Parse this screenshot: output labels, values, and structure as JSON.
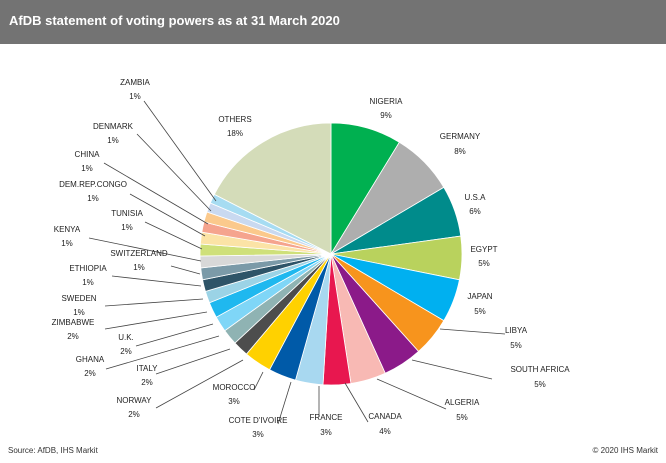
{
  "header": {
    "title": "AfDB statement of voting powers as at 31 March 2020"
  },
  "footer": {
    "source": "Source:  AfDB, IHS Markit",
    "copyright": "© 2020  IHS Markit"
  },
  "chart_data": {
    "type": "pie",
    "title": "AfDB statement of voting powers as at 31 March 2020",
    "slices": [
      {
        "name": "NIGERIA",
        "label": "9%",
        "value": 9.0,
        "color": "#00b050"
      },
      {
        "name": "GERMANY",
        "label": "8%",
        "value": 8.0,
        "color": "#aeaeae"
      },
      {
        "name": "U.S.A",
        "label": "6%",
        "value": 6.5,
        "color": "#008b8b"
      },
      {
        "name": "EGYPT",
        "label": "5%",
        "value": 5.5,
        "color": "#b9d25d"
      },
      {
        "name": "JAPAN",
        "label": "5%",
        "value": 5.5,
        "color": "#00b0f0"
      },
      {
        "name": "LIBYA",
        "label": "5%",
        "value": 5.0,
        "color": "#f7941d"
      },
      {
        "name": "SOUTH AFRICA",
        "label": "5%",
        "value": 5.0,
        "color": "#8b1a89"
      },
      {
        "name": "ALGERIA",
        "label": "5%",
        "value": 4.5,
        "color": "#f8b9b4"
      },
      {
        "name": "CANADA",
        "label": "4%",
        "value": 3.5,
        "color": "#e8174f"
      },
      {
        "name": "FRANCE",
        "label": "3%",
        "value": 3.5,
        "color": "#a8d8f0"
      },
      {
        "name": "COTE D'IVOIRE",
        "label": "3%",
        "value": 3.5,
        "color": "#005aa8"
      },
      {
        "name": "MOROCCO",
        "label": "3%",
        "value": 3.5,
        "color": "#ffd100"
      },
      {
        "name": "NORWAY",
        "label": "2%",
        "value": 2.0,
        "color": "#4d4d4d"
      },
      {
        "name": "ITALY",
        "label": "2%",
        "value": 2.0,
        "color": "#8fb3b3"
      },
      {
        "name": "GHANA",
        "label": "2%",
        "value": 2.0,
        "color": "#7fd6f7"
      },
      {
        "name": "U.K.",
        "label": "2%",
        "value": 2.0,
        "color": "#1fb8ef"
      },
      {
        "name": "ZIMBABWE",
        "label": "2%",
        "value": 1.5,
        "color": "#9bd3e6"
      },
      {
        "name": "SWEDEN",
        "label": "1%",
        "value": 1.5,
        "color": "#2e5468"
      },
      {
        "name": "ETHIOPIA",
        "label": "1%",
        "value": 1.5,
        "color": "#7b9aa8"
      },
      {
        "name": "SWITZERLAND",
        "label": "1%",
        "value": 1.5,
        "color": "#d8d8d8"
      },
      {
        "name": "KENYA",
        "label": "1%",
        "value": 1.5,
        "color": "#cfe07a"
      },
      {
        "name": "TUNISIA",
        "label": "1%",
        "value": 1.5,
        "color": "#fbe3a6"
      },
      {
        "name": "DEM.REP.CONGO",
        "label": "1%",
        "value": 1.3,
        "color": "#f5a48e"
      },
      {
        "name": "CHINA",
        "label": "1%",
        "value": 1.3,
        "color": "#fbc98c"
      },
      {
        "name": "DENMARK",
        "label": "1%",
        "value": 1.2,
        "color": "#c9d9f0"
      },
      {
        "name": "ZAMBIA",
        "label": "1%",
        "value": 1.2,
        "color": "#a6dcf2"
      },
      {
        "name": "OTHERS",
        "label": "18%",
        "value": 18.0,
        "color": "#d4dcb9"
      }
    ]
  }
}
